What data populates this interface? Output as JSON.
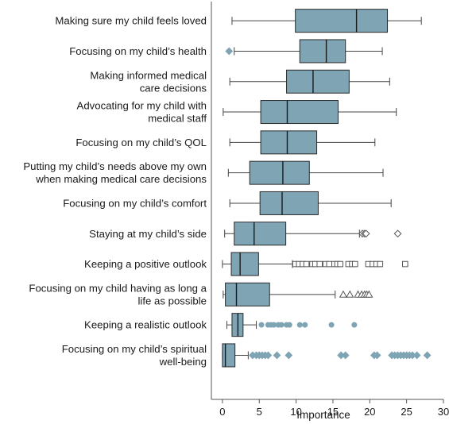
{
  "chart_data": {
    "type": "boxplot",
    "orientation": "horizontal",
    "xlabel": "Importance",
    "xlim": [
      -1.5,
      30
    ],
    "xticks": [
      0,
      5,
      10,
      15,
      20,
      25,
      30
    ],
    "colors": {
      "box_fill": "#7fa4b4",
      "box_stroke": "#2a2a2a",
      "median": "#1a1a1a",
      "whisker": "#444444",
      "outlier_filled": "#7fa4b4",
      "outlier_open": "#555555"
    },
    "series": [
      {
        "name": "Making sure my child feels loved",
        "lines": [
          "Making sure my child feels loved"
        ],
        "whisker_low": 1.3,
        "q1": 9.9,
        "median": 18.2,
        "q3": 22.4,
        "whisker_high": 27.0,
        "outliers": [],
        "outlier_marker": "none"
      },
      {
        "name": "Focusing on my child's health",
        "lines": [
          "Focusing on my child’s health"
        ],
        "whisker_low": 1.6,
        "q1": 10.5,
        "median": 14.1,
        "q3": 16.7,
        "whisker_high": 21.7,
        "outliers": [
          0.9
        ],
        "outlier_marker": "diamond-filled"
      },
      {
        "name": "Making informed medical care decisions",
        "lines": [
          "Making informed medical",
          "care decisions"
        ],
        "whisker_low": 1.0,
        "q1": 8.7,
        "median": 12.3,
        "q3": 17.2,
        "whisker_high": 22.7,
        "outliers": [],
        "outlier_marker": "none"
      },
      {
        "name": "Advocating for my child with medical staff",
        "lines": [
          "Advocating for my child with",
          "medical staff"
        ],
        "whisker_low": 0.1,
        "q1": 5.2,
        "median": 8.8,
        "q3": 15.7,
        "whisker_high": 23.6,
        "outliers": [],
        "outlier_marker": "none"
      },
      {
        "name": "Focusing on my child's QOL",
        "lines": [
          "Focusing on my child’s QOL"
        ],
        "whisker_low": 1.0,
        "q1": 5.2,
        "median": 8.8,
        "q3": 12.8,
        "whisker_high": 20.7,
        "outliers": [],
        "outlier_marker": "none"
      },
      {
        "name": "Putting my child's needs above my own when making medical care decisions",
        "lines": [
          "Putting my child’s needs above my own",
          "when making medical care decisions"
        ],
        "whisker_low": 0.8,
        "q1": 3.7,
        "median": 8.2,
        "q3": 11.8,
        "whisker_high": 21.8,
        "outliers": [],
        "outlier_marker": "none"
      },
      {
        "name": "Focusing on my child's comfort",
        "lines": [
          "Focusing on my child’s comfort"
        ],
        "whisker_low": 1.0,
        "q1": 5.1,
        "median": 8.1,
        "q3": 13.0,
        "whisker_high": 22.9,
        "outliers": [],
        "outlier_marker": "none"
      },
      {
        "name": "Staying at my child's side",
        "lines": [
          "Staying at my child’s side"
        ],
        "whisker_low": 0.3,
        "q1": 1.6,
        "median": 4.3,
        "q3": 8.6,
        "whisker_high": 18.6,
        "outliers": [
          19.0,
          19.3,
          19.5,
          23.8
        ],
        "outlier_marker": "diamond-open"
      },
      {
        "name": "Keeping a positive outlook",
        "lines": [
          "Keeping a positive outlook"
        ],
        "whisker_low": 0.0,
        "q1": 1.2,
        "median": 2.4,
        "q3": 4.9,
        "whisker_high": 9.5,
        "outliers": [
          9.9,
          10.4,
          10.9,
          11.4,
          12.2,
          12.6,
          13.2,
          14.0,
          14.5,
          15.2,
          15.6,
          16.0,
          17.1,
          17.6,
          18.0,
          19.8,
          20.4,
          20.9,
          21.4,
          24.8
        ],
        "outlier_marker": "square-open"
      },
      {
        "name": "Focusing on my child having as long a life as possible",
        "lines": [
          "Focusing on my child having as long a",
          "life as possible"
        ],
        "whisker_low": 0.1,
        "q1": 0.4,
        "median": 1.9,
        "q3": 6.4,
        "whisker_high": 15.3,
        "outliers": [
          16.4,
          17.3,
          18.4,
          18.9,
          19.3,
          19.6,
          19.9
        ],
        "outlier_marker": "triangle-open"
      },
      {
        "name": "Keeping a realistic outlook",
        "lines": [
          "Keeping a realistic outlook"
        ],
        "whisker_low": 0.6,
        "q1": 1.3,
        "median": 2.1,
        "q3": 2.8,
        "whisker_high": 4.6,
        "outliers": [
          5.3,
          6.2,
          6.6,
          7.0,
          7.6,
          8.0,
          8.7,
          9.1,
          10.5,
          11.2,
          14.8,
          17.9
        ],
        "outlier_marker": "circle-filled"
      },
      {
        "name": "Focusing on my child's spiritual well-being",
        "lines": [
          "Focusing on my child’s spiritual",
          "well-being"
        ],
        "whisker_low": 0.0,
        "q1": 0.0,
        "median": 0.4,
        "q3": 1.7,
        "whisker_high": 3.5,
        "outliers": [
          4.1,
          4.6,
          5.0,
          5.4,
          5.8,
          6.2,
          7.4,
          9.0,
          16.1,
          16.7,
          20.6,
          21.0,
          23.0,
          23.4,
          23.8,
          24.2,
          24.6,
          25.0,
          25.4,
          25.8,
          26.4,
          27.8
        ],
        "outlier_marker": "diamond-filled"
      }
    ]
  }
}
